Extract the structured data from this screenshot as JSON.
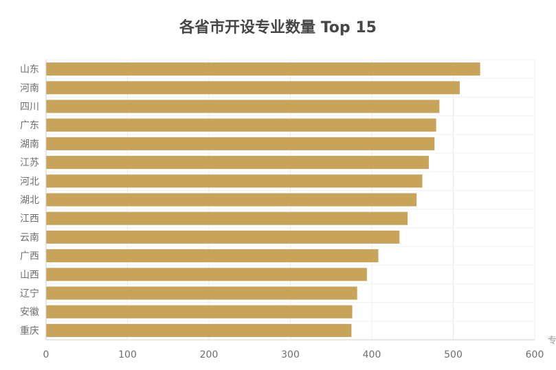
{
  "chart_data": {
    "type": "bar",
    "orientation": "horizontal",
    "title": "各省市开设专业数量 Top 15",
    "xlabel": "专",
    "ylabel": "",
    "categories": [
      "山东",
      "河南",
      "四川",
      "广东",
      "湖南",
      "江苏",
      "河北",
      "湖北",
      "江西",
      "云南",
      "广西",
      "山西",
      "辽宁",
      "安徽",
      "重庆"
    ],
    "values": [
      533,
      508,
      483,
      479,
      477,
      470,
      462,
      455,
      444,
      434,
      408,
      394,
      382,
      376,
      375
    ],
    "xlim": [
      0,
      600
    ],
    "xticks": [
      "0",
      "100",
      "200",
      "300",
      "400",
      "500",
      "600"
    ],
    "grid": true,
    "bar_color": "#c8a35a"
  }
}
